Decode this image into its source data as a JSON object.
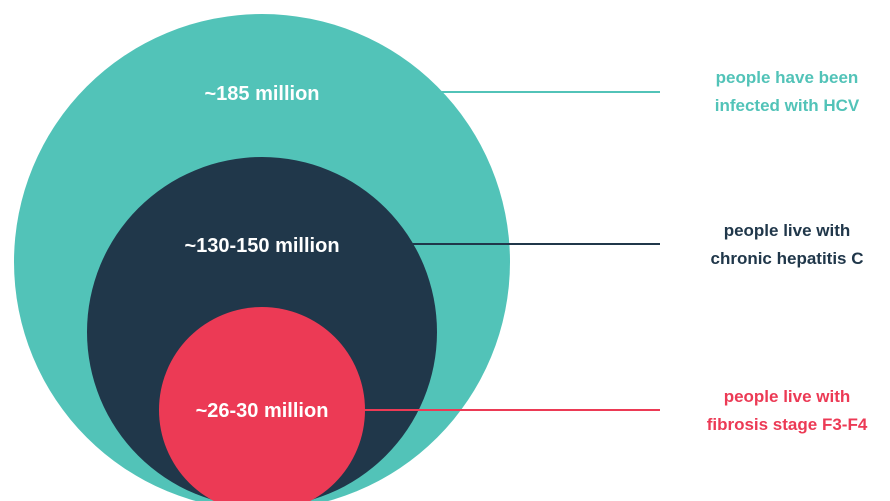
{
  "colors": {
    "teal": "#52c3b8",
    "navy": "#20374a",
    "red": "#ec3a55",
    "white": "#ffffff"
  },
  "circles": [
    {
      "id": "outer",
      "value": "~185 million",
      "description_line1": "people have been",
      "description_line2": "infected with HCV",
      "color": "#52c3b8"
    },
    {
      "id": "middle",
      "value": "~130-150 million",
      "description_line1": "people live with",
      "description_line2": "chronic hepatitis C",
      "color": "#20374a"
    },
    {
      "id": "inner",
      "value": "~26-30 million",
      "description_line1": "people live with",
      "description_line2": "fibrosis stage F3-F4",
      "color": "#ec3a55"
    }
  ]
}
